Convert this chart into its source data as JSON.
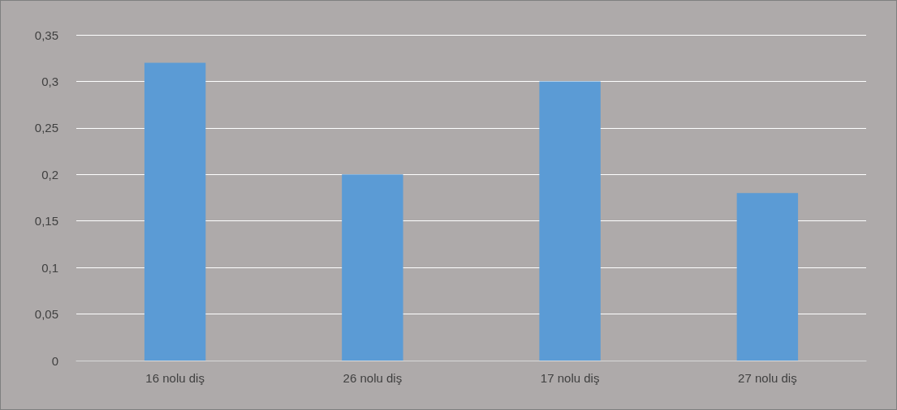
{
  "chart_data": {
    "type": "bar",
    "categories": [
      "16 nolu diş",
      "26 nolu diş",
      "17 nolu diş",
      "27 nolu diş"
    ],
    "values": [
      0.32,
      0.2,
      0.3,
      0.18
    ],
    "color": "#5b9bd5",
    "ylim": [
      0,
      0.35
    ],
    "yticks": [
      {
        "value": 0,
        "label": "0"
      },
      {
        "value": 0.05,
        "label": "0,05"
      },
      {
        "value": 0.1,
        "label": "0,1"
      },
      {
        "value": 0.15,
        "label": "0,15"
      },
      {
        "value": 0.2,
        "label": "0,2"
      },
      {
        "value": 0.25,
        "label": "0,25"
      },
      {
        "value": 0.3,
        "label": "0,3"
      },
      {
        "value": 0.35,
        "label": "0,35"
      }
    ],
    "grid": "y"
  }
}
